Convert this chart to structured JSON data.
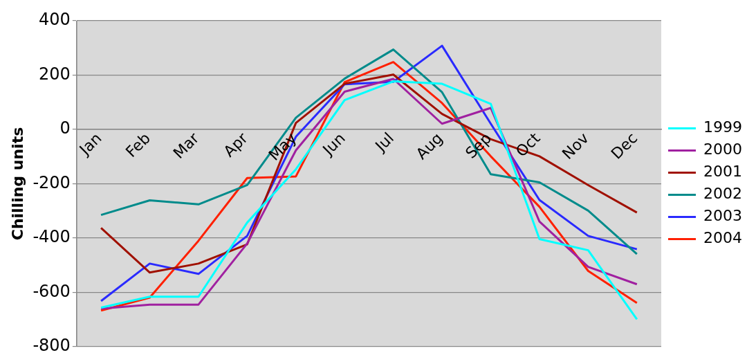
{
  "chart_data": {
    "type": "line",
    "ylabel": "Chilling units",
    "categories": [
      "Jan",
      "Feb",
      "Mar",
      "Apr",
      "May",
      "Jun",
      "Jul",
      "Aug",
      "Sep",
      "Oct",
      "Nov",
      "Dec"
    ],
    "series": [
      {
        "name": "1999",
        "color": "#00ffff",
        "values": [
          -656,
          -616,
          -616,
          -343,
          -147,
          108,
          177,
          168,
          94,
          -404,
          -445,
          -699
        ]
      },
      {
        "name": "2000",
        "color": "#a020a0",
        "values": [
          -660,
          -645,
          -645,
          -420,
          -77,
          139,
          186,
          21,
          79,
          -339,
          -506,
          -570
        ]
      },
      {
        "name": "2001",
        "color": "#a01000",
        "values": [
          -363,
          -527,
          -494,
          -423,
          24,
          168,
          202,
          57,
          -36,
          -99,
          -205,
          -306
        ]
      },
      {
        "name": "2002",
        "color": "#008b8b",
        "values": [
          -315,
          -261,
          -276,
          -205,
          43,
          187,
          294,
          137,
          -165,
          -195,
          -299,
          -459
        ]
      },
      {
        "name": "2003",
        "color": "#2a2aff",
        "values": [
          -632,
          -494,
          -532,
          -392,
          -27,
          166,
          175,
          308,
          21,
          -260,
          -392,
          -441
        ]
      },
      {
        "name": "2004",
        "color": "#ff2000",
        "values": [
          -667,
          -619,
          -410,
          -179,
          -173,
          174,
          248,
          97,
          -99,
          -285,
          -521,
          -639
        ]
      }
    ],
    "ylim": [
      -800,
      400
    ],
    "yticks": [
      -800,
      -600,
      -400,
      -200,
      0,
      200,
      400
    ],
    "grid": "y",
    "legend": "right",
    "marker": "none",
    "line_style": "solid"
  }
}
